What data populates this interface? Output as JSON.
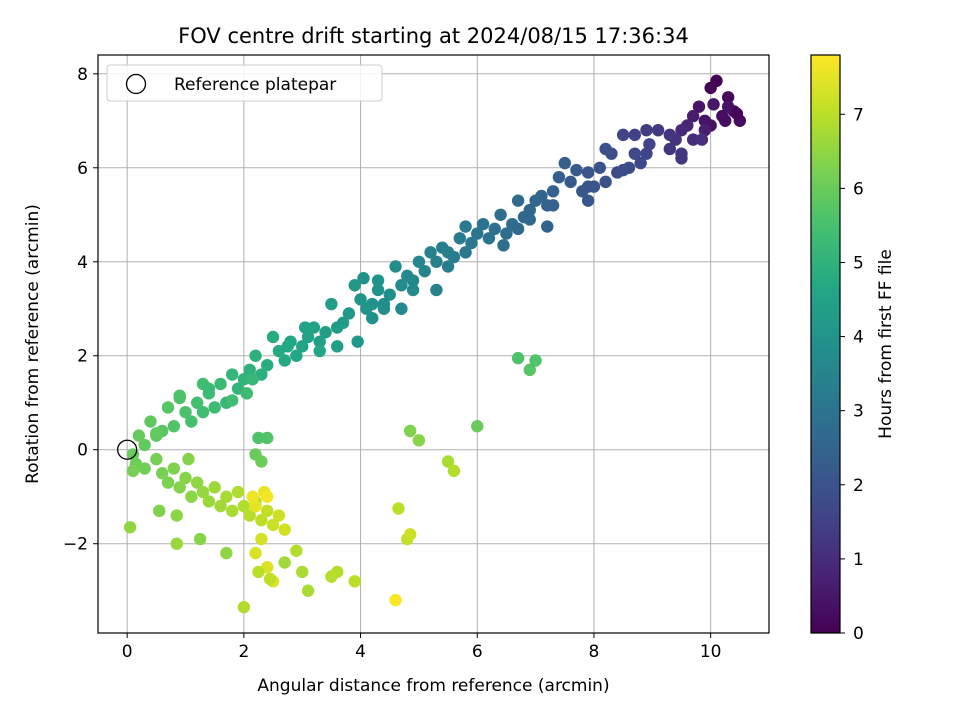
{
  "chart_data": {
    "type": "scatter",
    "title": "FOV centre drift starting at 2024/08/15 17:36:34",
    "xlabel": "Angular distance from reference (arcmin)",
    "ylabel": "Rotation from reference (arcmin)",
    "xlim": [
      -0.5,
      11
    ],
    "ylim": [
      -3.9,
      8.4
    ],
    "xticks": [
      0,
      2,
      4,
      6,
      8,
      10
    ],
    "yticks": [
      -2,
      0,
      2,
      4,
      6,
      8
    ],
    "grid": true,
    "colormap": "viridis",
    "colorbar": {
      "label": "Hours from first FF file",
      "range": [
        0,
        7.8
      ],
      "ticks": [
        0,
        1,
        2,
        3,
        4,
        5,
        6,
        7
      ]
    },
    "legend": {
      "placement": "top-left",
      "entries": [
        {
          "label": "Reference platepar",
          "marker": "open-circle",
          "color": "#000000"
        }
      ]
    },
    "reference_point": {
      "x": 0,
      "y": 0
    },
    "series": [
      {
        "name": "",
        "marker": "circle",
        "color_by": "hours",
        "points": [
          [
            10.1,
            7.85,
            0.05
          ],
          [
            10.0,
            7.7,
            0.1
          ],
          [
            10.3,
            7.5,
            0.15
          ],
          [
            10.4,
            7.2,
            0.2
          ],
          [
            10.5,
            7.0,
            0.25
          ],
          [
            10.2,
            7.1,
            0.3
          ],
          [
            10.0,
            6.9,
            0.35
          ],
          [
            9.9,
            7.0,
            0.4
          ],
          [
            9.8,
            7.3,
            0.45
          ],
          [
            10.05,
            7.35,
            0.5
          ],
          [
            9.7,
            7.1,
            0.6
          ],
          [
            9.9,
            6.8,
            0.7
          ],
          [
            9.6,
            6.9,
            0.8
          ],
          [
            9.5,
            6.8,
            0.9
          ],
          [
            9.7,
            6.6,
            1.0
          ],
          [
            9.4,
            6.6,
            1.1
          ],
          [
            9.3,
            6.4,
            1.2
          ],
          [
            9.5,
            6.3,
            1.3
          ],
          [
            9.1,
            6.8,
            1.3
          ],
          [
            8.9,
            6.8,
            1.4
          ],
          [
            8.7,
            6.7,
            1.5
          ],
          [
            8.5,
            6.7,
            1.55
          ],
          [
            8.9,
            6.3,
            1.6
          ],
          [
            8.8,
            6.1,
            1.7
          ],
          [
            8.6,
            6.0,
            1.75
          ],
          [
            8.4,
            5.9,
            1.8
          ],
          [
            8.3,
            6.3,
            1.85
          ],
          [
            8.2,
            6.4,
            1.9
          ],
          [
            8.1,
            6.0,
            1.95
          ],
          [
            7.9,
            5.9,
            2.0
          ],
          [
            8.0,
            5.6,
            2.05
          ],
          [
            7.8,
            5.5,
            2.1
          ],
          [
            7.9,
            5.3,
            2.15
          ],
          [
            7.6,
            5.7,
            2.2
          ],
          [
            7.7,
            5.95,
            2.25
          ],
          [
            7.5,
            6.1,
            2.3
          ],
          [
            7.4,
            5.8,
            2.35
          ],
          [
            7.3,
            5.5,
            2.4
          ],
          [
            7.2,
            5.2,
            2.45
          ],
          [
            7.1,
            5.4,
            2.5
          ],
          [
            7.0,
            5.3,
            2.55
          ],
          [
            6.9,
            5.1,
            2.6
          ],
          [
            6.8,
            4.95,
            2.65
          ],
          [
            6.7,
            5.3,
            2.7
          ],
          [
            6.6,
            4.8,
            2.75
          ],
          [
            6.5,
            4.6,
            2.8
          ],
          [
            6.4,
            5.0,
            2.85
          ],
          [
            6.3,
            4.7,
            2.9
          ],
          [
            6.2,
            4.5,
            2.95
          ],
          [
            6.1,
            4.8,
            3.0
          ],
          [
            6.0,
            4.6,
            3.05
          ],
          [
            5.9,
            4.4,
            3.1
          ],
          [
            5.8,
            4.2,
            3.15
          ],
          [
            5.7,
            4.5,
            3.2
          ],
          [
            5.6,
            4.1,
            3.25
          ],
          [
            5.5,
            3.9,
            3.3
          ],
          [
            5.4,
            4.3,
            3.35
          ],
          [
            5.3,
            4.0,
            3.4
          ],
          [
            5.2,
            4.2,
            3.45
          ],
          [
            5.1,
            3.8,
            3.5
          ],
          [
            5.0,
            4.0,
            3.55
          ],
          [
            4.9,
            3.6,
            3.6
          ],
          [
            4.8,
            3.7,
            3.65
          ],
          [
            4.7,
            3.5,
            3.7
          ],
          [
            4.6,
            3.9,
            3.75
          ],
          [
            4.5,
            3.3,
            3.8
          ],
          [
            4.4,
            3.0,
            3.85
          ],
          [
            4.3,
            3.4,
            3.9
          ],
          [
            4.2,
            3.1,
            3.95
          ],
          [
            4.1,
            3.0,
            4.0
          ],
          [
            4.0,
            3.2,
            4.05
          ],
          [
            3.9,
            3.5,
            4.1
          ],
          [
            3.8,
            2.9,
            4.15
          ],
          [
            3.7,
            2.7,
            4.2
          ],
          [
            3.6,
            2.6,
            4.25
          ],
          [
            3.5,
            3.1,
            4.3
          ],
          [
            3.4,
            2.5,
            4.35
          ],
          [
            3.3,
            2.3,
            4.4
          ],
          [
            3.2,
            2.6,
            4.45
          ],
          [
            3.1,
            2.4,
            4.5
          ],
          [
            3.0,
            2.2,
            4.55
          ],
          [
            2.9,
            2.0,
            4.6
          ],
          [
            2.8,
            2.3,
            4.65
          ],
          [
            2.7,
            1.9,
            4.7
          ],
          [
            2.6,
            2.1,
            4.75
          ],
          [
            2.5,
            2.4,
            4.8
          ],
          [
            2.4,
            1.8,
            4.85
          ],
          [
            2.3,
            1.6,
            4.9
          ],
          [
            2.2,
            2.0,
            4.95
          ],
          [
            2.1,
            1.7,
            5.0
          ],
          [
            2.0,
            1.5,
            5.05
          ],
          [
            1.9,
            1.3,
            5.1
          ],
          [
            1.8,
            1.6,
            5.15
          ],
          [
            1.7,
            1.0,
            5.2
          ],
          [
            1.6,
            1.4,
            5.25
          ],
          [
            1.5,
            0.9,
            5.3
          ],
          [
            1.4,
            1.2,
            5.35
          ],
          [
            1.3,
            0.8,
            5.4
          ],
          [
            1.2,
            1.0,
            5.45
          ],
          [
            1.1,
            0.6,
            5.5
          ],
          [
            1.0,
            0.8,
            5.55
          ],
          [
            0.9,
            1.1,
            5.6
          ],
          [
            0.8,
            0.5,
            5.65
          ],
          [
            0.7,
            0.9,
            5.7
          ],
          [
            0.6,
            0.4,
            5.75
          ],
          [
            0.5,
            0.3,
            5.8
          ],
          [
            0.4,
            0.6,
            5.85
          ],
          [
            0.3,
            0.1,
            5.9
          ],
          [
            0.2,
            0.3,
            5.95
          ],
          [
            0.1,
            -0.1,
            6.0
          ],
          [
            0.15,
            -0.3,
            6.05
          ],
          [
            0.3,
            -0.4,
            6.1
          ],
          [
            0.5,
            -0.2,
            6.15
          ],
          [
            0.6,
            -0.5,
            6.2
          ],
          [
            0.7,
            -0.7,
            6.25
          ],
          [
            0.8,
            -0.4,
            6.3
          ],
          [
            0.9,
            -0.8,
            6.35
          ],
          [
            1.0,
            -0.6,
            6.4
          ],
          [
            1.1,
            -1.0,
            6.45
          ],
          [
            1.2,
            -0.7,
            6.5
          ],
          [
            1.3,
            -0.9,
            6.55
          ],
          [
            1.4,
            -1.1,
            6.6
          ],
          [
            1.5,
            -0.8,
            6.65
          ],
          [
            1.6,
            -1.2,
            6.7
          ],
          [
            1.7,
            -1.0,
            6.75
          ],
          [
            1.8,
            -1.3,
            6.8
          ],
          [
            1.9,
            -0.9,
            6.85
          ],
          [
            2.0,
            -1.2,
            6.9
          ],
          [
            2.1,
            -1.4,
            6.95
          ],
          [
            2.2,
            -1.1,
            7.0
          ],
          [
            2.3,
            -1.5,
            7.05
          ],
          [
            2.4,
            -1.3,
            7.1
          ],
          [
            2.5,
            -1.6,
            7.15
          ],
          [
            2.6,
            -1.4,
            7.2
          ],
          [
            2.7,
            -1.7,
            7.25
          ],
          [
            2.3,
            -1.9,
            7.3
          ],
          [
            2.2,
            -2.2,
            7.35
          ],
          [
            2.4,
            -2.5,
            7.4
          ],
          [
            2.5,
            -2.8,
            7.45
          ],
          [
            2.2,
            -1.2,
            7.5
          ],
          [
            2.35,
            -0.9,
            7.55
          ],
          [
            2.15,
            -1.0,
            7.6
          ],
          [
            2.4,
            -1.0,
            7.7
          ],
          [
            4.6,
            -3.2,
            7.75
          ],
          [
            6.7,
            1.95,
            5.6
          ],
          [
            6.9,
            1.7,
            5.7
          ],
          [
            7.0,
            1.9,
            5.65
          ],
          [
            6.0,
            0.5,
            6.0
          ],
          [
            4.85,
            0.4,
            6.3
          ],
          [
            5.0,
            0.2,
            6.4
          ],
          [
            5.5,
            -0.25,
            6.8
          ],
          [
            5.6,
            -0.45,
            6.9
          ],
          [
            4.65,
            -1.25,
            7.0
          ],
          [
            4.8,
            -1.9,
            7.1
          ],
          [
            4.85,
            -1.8,
            7.2
          ],
          [
            3.9,
            -2.8,
            7.0
          ],
          [
            3.6,
            -2.6,
            6.9
          ],
          [
            3.5,
            -2.7,
            6.95
          ],
          [
            3.1,
            -3.0,
            6.8
          ],
          [
            2.0,
            -3.35,
            6.9
          ],
          [
            2.25,
            -2.6,
            7.0
          ],
          [
            2.45,
            -2.75,
            7.05
          ],
          [
            2.9,
            -2.15,
            6.9
          ],
          [
            3.0,
            -2.6,
            6.8
          ],
          [
            2.7,
            -2.4,
            6.7
          ],
          [
            1.7,
            -2.2,
            6.5
          ],
          [
            1.25,
            -1.9,
            6.4
          ],
          [
            0.85,
            -2.0,
            6.6
          ],
          [
            0.05,
            -1.65,
            6.5
          ],
          [
            0.1,
            -0.45,
            6.2
          ],
          [
            0.55,
            -1.3,
            6.3
          ],
          [
            0.85,
            -1.4,
            6.45
          ],
          [
            1.05,
            -0.2,
            6.35
          ],
          [
            0.5,
            0.35,
            5.9
          ],
          [
            2.25,
            0.25,
            5.6
          ],
          [
            2.4,
            0.25,
            5.65
          ],
          [
            2.2,
            -0.1,
            6.0
          ],
          [
            2.3,
            -0.25,
            6.05
          ],
          [
            1.8,
            1.05,
            5.4
          ],
          [
            2.05,
            1.2,
            5.3
          ],
          [
            2.15,
            1.5,
            5.2
          ],
          [
            1.3,
            1.4,
            5.4
          ],
          [
            1.4,
            1.3,
            5.3
          ],
          [
            0.9,
            1.15,
            5.6
          ],
          [
            3.6,
            2.2,
            4.4
          ],
          [
            3.3,
            2.1,
            4.6
          ],
          [
            3.05,
            2.6,
            4.5
          ],
          [
            2.75,
            2.2,
            4.7
          ],
          [
            3.95,
            2.3,
            4.1
          ],
          [
            4.2,
            2.8,
            3.9
          ],
          [
            4.4,
            3.1,
            3.8
          ],
          [
            4.7,
            3.0,
            3.7
          ],
          [
            4.05,
            3.65,
            3.95
          ],
          [
            4.3,
            3.6,
            3.9
          ],
          [
            4.9,
            3.4,
            3.65
          ],
          [
            5.3,
            3.4,
            3.4
          ],
          [
            5.5,
            4.2,
            3.35
          ],
          [
            5.8,
            4.75,
            3.15
          ],
          [
            6.45,
            4.35,
            2.85
          ],
          [
            6.7,
            4.7,
            2.7
          ],
          [
            6.9,
            4.9,
            2.6
          ],
          [
            7.2,
            4.75,
            2.45
          ],
          [
            7.3,
            5.2,
            2.4
          ],
          [
            7.9,
            5.6,
            2.05
          ],
          [
            8.2,
            5.7,
            1.95
          ],
          [
            8.5,
            5.95,
            1.8
          ],
          [
            8.7,
            6.3,
            1.7
          ],
          [
            8.95,
            6.5,
            1.55
          ],
          [
            9.3,
            6.7,
            1.2
          ],
          [
            9.5,
            6.2,
            1.25
          ],
          [
            9.85,
            6.6,
            1.05
          ],
          [
            10.3,
            7.3,
            0.4
          ],
          [
            10.25,
            7.0,
            0.3
          ],
          [
            10.45,
            7.15,
            0.1
          ]
        ]
      }
    ]
  }
}
